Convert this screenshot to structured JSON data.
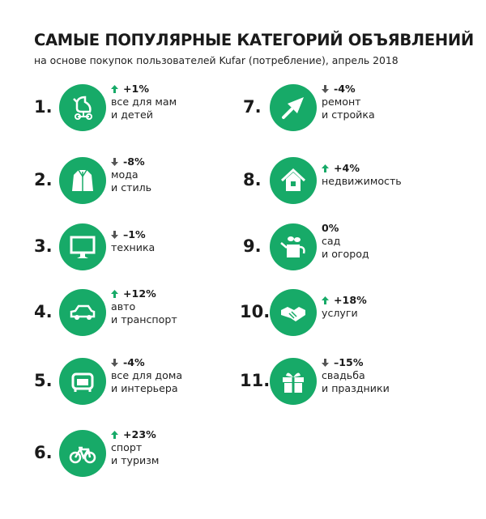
{
  "title": "САМЫЕ ПОПУЛЯРНЫЕ КАТЕГОРИЙ ОБЪЯВЛЕНИЙ",
  "subtitle": "на основе покупок пользователей Kufar (потребление), апрель 2018",
  "colors": {
    "accent": "#17aa68",
    "up": "#17aa68",
    "down": "#555555"
  },
  "items": [
    {
      "num": "1.",
      "change": "+1%",
      "dir": "up",
      "line1": "все для мам",
      "line2": "и детей",
      "icon": "stroller-icon"
    },
    {
      "num": "2.",
      "change": "-8%",
      "dir": "down",
      "line1": "мода",
      "line2": "и стиль",
      "icon": "coat-icon"
    },
    {
      "num": "3.",
      "change": "–1%",
      "dir": "down",
      "line1": "техника",
      "line2": "",
      "icon": "monitor-icon"
    },
    {
      "num": "4.",
      "change": "+12%",
      "dir": "up",
      "line1": "авто",
      "line2": "и транспорт",
      "icon": "car-icon"
    },
    {
      "num": "5.",
      "change": "-4%",
      "dir": "down",
      "line1": "все для дома",
      "line2": "и интерьера",
      "icon": "armchair-icon"
    },
    {
      "num": "6.",
      "change": "+23%",
      "dir": "up",
      "line1": "спорт",
      "line2": "и туризм",
      "icon": "bicycle-icon"
    },
    {
      "num": "7.",
      "change": "-4%",
      "dir": "down",
      "line1": "ремонт",
      "line2": "и стройка",
      "icon": "trowel-icon"
    },
    {
      "num": "8.",
      "change": "+4%",
      "dir": "up",
      "line1": "недвижимость",
      "line2": "",
      "icon": "house-icon"
    },
    {
      "num": "9.",
      "change": "0%",
      "dir": "none",
      "line1": "сад",
      "line2": "и огород",
      "icon": "watering-can-icon"
    },
    {
      "num": "10.",
      "change": "+18%",
      "dir": "up",
      "line1": "услуги",
      "line2": "",
      "icon": "handshake-icon"
    },
    {
      "num": "11.",
      "change": "–15%",
      "dir": "down",
      "line1": "свадьба",
      "line2": "и праздники",
      "icon": "gift-icon"
    }
  ]
}
